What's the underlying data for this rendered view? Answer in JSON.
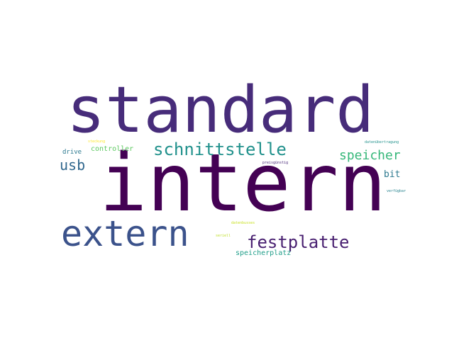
{
  "word_cloud": {
    "words": {
      "standard": "standard",
      "intern": "intern",
      "extern": "extern",
      "schnittstelle": "schnittstelle",
      "festplatte": "festplatte",
      "speicher": "speicher",
      "usb": "usb",
      "bit": "bit",
      "controller": "controller",
      "drive": "drive",
      "speicherplatz": "speicherplatz",
      "tiny_1": "steckung",
      "tiny_2": "preisgünstig",
      "tiny_3": "datenübertragung",
      "tiny_4": "verfügbar",
      "tiny_5": "datenbusses",
      "tiny_6": "seriell"
    },
    "colors": {
      "background": "#ffffff",
      "palette": [
        "#440154",
        "#472c7a",
        "#3b528b",
        "#31688e",
        "#21918c",
        "#35b779",
        "#fde725"
      ]
    }
  }
}
